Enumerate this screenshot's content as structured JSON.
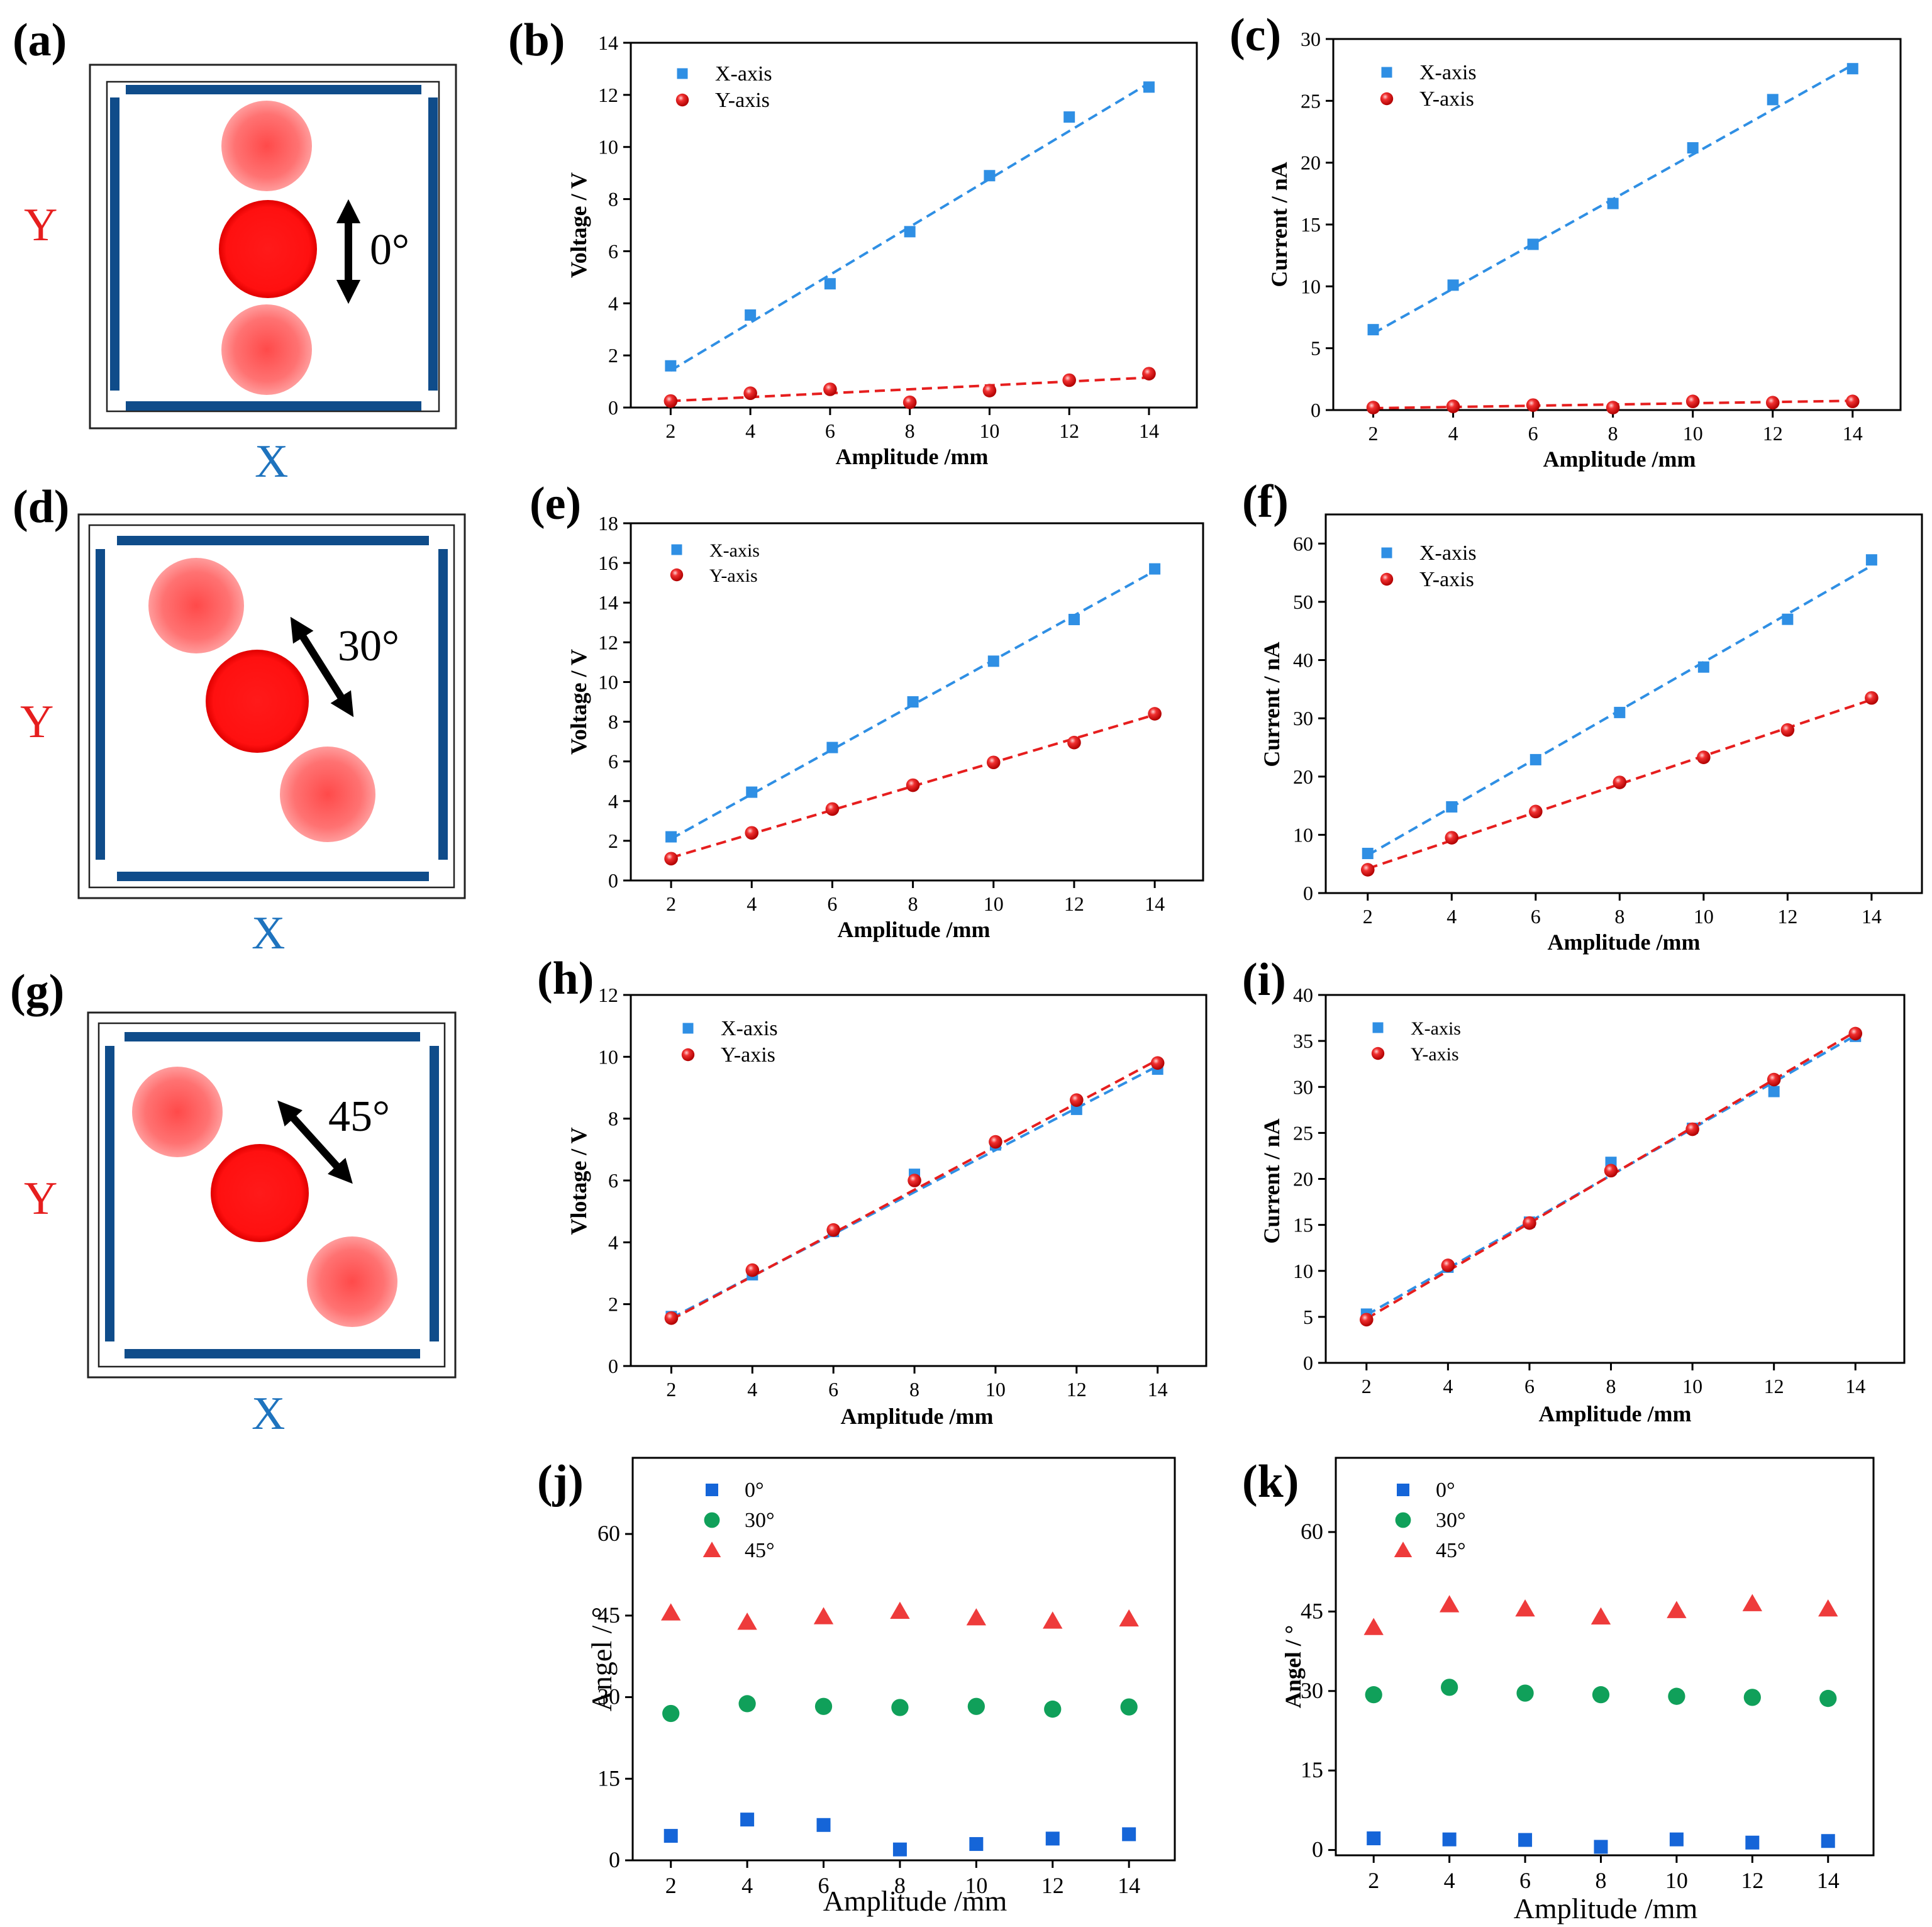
{
  "colors": {
    "x_axis_series": "#2f8fe4",
    "y_axis_series": "#e61e1e",
    "angle_0": "#1565d8",
    "angle_30": "#10a05a",
    "angle_45": "#ee3b3b",
    "frame": "#0f4c8a",
    "ball": "#ff1a1a"
  },
  "schematics": [
    {
      "panel": "(a)",
      "angle": "0°",
      "x_label": "X",
      "y_label": "Y"
    },
    {
      "panel": "(d)",
      "angle": "30°",
      "x_label": "X",
      "y_label": "Y"
    },
    {
      "panel": "(g)",
      "angle": "45°",
      "x_label": "X",
      "y_label": "Y"
    }
  ],
  "chart_data": [
    {
      "panel": "(b)",
      "type": "scatter",
      "xlabel": "Amplitude /mm",
      "ylabel": "Voltage / V",
      "xlim": [
        1,
        15.2
      ],
      "ylim": [
        0,
        14
      ],
      "xticks": [
        2,
        4,
        6,
        8,
        10,
        12,
        14
      ],
      "yticks": [
        0,
        2,
        4,
        6,
        8,
        10,
        12,
        14
      ],
      "legend": [
        "X-axis",
        "Y-axis"
      ],
      "series": [
        {
          "name": "X-axis",
          "marker": "square",
          "x": [
            2,
            4,
            6,
            8,
            10,
            12,
            14
          ],
          "values": [
            1.6,
            3.55,
            4.75,
            6.75,
            8.9,
            11.15,
            12.3
          ],
          "fit": [
            1.42,
            12.45
          ]
        },
        {
          "name": "Y-axis",
          "marker": "sphere",
          "x": [
            2,
            4,
            6,
            8,
            10,
            12,
            14
          ],
          "values": [
            0.25,
            0.55,
            0.7,
            0.2,
            0.65,
            1.05,
            1.3
          ],
          "fit": [
            0.25,
            1.15
          ]
        }
      ]
    },
    {
      "panel": "(c)",
      "type": "scatter",
      "xlabel": "Amplitude /mm",
      "ylabel": "Current  / nA",
      "xlim": [
        1,
        15.2
      ],
      "ylim": [
        0,
        30
      ],
      "xticks": [
        2,
        4,
        6,
        8,
        10,
        12,
        14
      ],
      "yticks": [
        0,
        5,
        10,
        15,
        20,
        25,
        30
      ],
      "legend": [
        "X-axis",
        "Y-axis"
      ],
      "series": [
        {
          "name": "X-axis",
          "marker": "square",
          "x": [
            2,
            4,
            6,
            8,
            10,
            12,
            14
          ],
          "values": [
            6.5,
            10.1,
            13.4,
            16.7,
            21.2,
            25.1,
            27.6
          ],
          "fit": [
            6.2,
            27.9
          ]
        },
        {
          "name": "Y-axis",
          "marker": "sphere",
          "x": [
            2,
            4,
            6,
            8,
            10,
            12,
            14
          ],
          "values": [
            0.2,
            0.3,
            0.4,
            0.2,
            0.7,
            0.6,
            0.7
          ],
          "fit": [
            0.15,
            0.75
          ]
        }
      ]
    },
    {
      "panel": "(e)",
      "type": "scatter",
      "xlabel": "Amplitude /mm",
      "ylabel": "Voltage / V",
      "xlim": [
        1,
        15.2
      ],
      "ylim": [
        0,
        18
      ],
      "xticks": [
        2,
        4,
        6,
        8,
        10,
        12,
        14
      ],
      "yticks": [
        0,
        2,
        4,
        6,
        8,
        10,
        12,
        14,
        16,
        18
      ],
      "legend": [
        "X-axis",
        "Y-axis"
      ],
      "series": [
        {
          "name": "X-axis",
          "marker": "square",
          "x": [
            2,
            4,
            6,
            8,
            10,
            12,
            14
          ],
          "values": [
            2.2,
            4.45,
            6.7,
            9.0,
            11.05,
            13.15,
            15.7
          ],
          "fit": [
            2.1,
            15.6
          ]
        },
        {
          "name": "Y-axis",
          "marker": "sphere",
          "x": [
            2,
            4,
            6,
            8,
            10,
            12,
            14
          ],
          "values": [
            1.1,
            2.4,
            3.6,
            4.8,
            5.95,
            6.95,
            8.4
          ],
          "fit": [
            1.15,
            8.35
          ]
        }
      ]
    },
    {
      "panel": "(f)",
      "type": "scatter",
      "xlabel": "Amplitude /mm",
      "ylabel": "Current / nA",
      "xlim": [
        1,
        15.2
      ],
      "ylim": [
        0,
        65
      ],
      "xticks": [
        2,
        4,
        6,
        8,
        10,
        12,
        14
      ],
      "yticks": [
        0,
        10,
        20,
        30,
        40,
        50,
        60
      ],
      "legend": [
        "X-axis",
        "Y-axis"
      ],
      "series": [
        {
          "name": "X-axis",
          "marker": "square",
          "x": [
            2,
            4,
            6,
            8,
            10,
            12,
            14
          ],
          "values": [
            6.8,
            14.8,
            22.9,
            31.0,
            38.8,
            47.0,
            57.2
          ],
          "fit": [
            6.5,
            56.2
          ]
        },
        {
          "name": "Y-axis",
          "marker": "sphere",
          "x": [
            2,
            4,
            6,
            8,
            10,
            12,
            14
          ],
          "values": [
            4.0,
            9.5,
            14.0,
            19.0,
            23.3,
            28.0,
            33.5
          ],
          "fit": [
            4.2,
            33.2
          ]
        }
      ]
    },
    {
      "panel": "(h)",
      "type": "scatter",
      "xlabel": "Amplitude /mm",
      "ylabel": "Vlotage / V",
      "xlim": [
        1,
        15.2
      ],
      "ylim": [
        0,
        12
      ],
      "xticks": [
        2,
        4,
        6,
        8,
        10,
        12,
        14
      ],
      "yticks": [
        0,
        2,
        4,
        6,
        8,
        10,
        12
      ],
      "legend": [
        "X-axis",
        "Y-axis"
      ],
      "series": [
        {
          "name": "X-axis",
          "marker": "square",
          "x": [
            2,
            4,
            6,
            8,
            10,
            12,
            14
          ],
          "values": [
            1.6,
            2.95,
            4.35,
            6.2,
            7.15,
            8.3,
            9.6
          ],
          "fit": [
            1.55,
            9.7
          ]
        },
        {
          "name": "Y-axis",
          "marker": "sphere",
          "x": [
            2,
            4,
            6,
            8,
            10,
            12,
            14
          ],
          "values": [
            1.55,
            3.1,
            4.4,
            6.0,
            7.25,
            8.6,
            9.8
          ],
          "fit": [
            1.5,
            9.9
          ]
        }
      ]
    },
    {
      "panel": "(i)",
      "type": "scatter",
      "xlabel": "Amplitude /mm",
      "ylabel": "Current / nA",
      "xlim": [
        1,
        15.2
      ],
      "ylim": [
        0,
        40
      ],
      "xticks": [
        2,
        4,
        6,
        8,
        10,
        12,
        14
      ],
      "yticks": [
        0,
        5,
        10,
        15,
        20,
        25,
        30,
        35,
        40
      ],
      "legend": [
        "X-axis",
        "Y-axis"
      ],
      "series": [
        {
          "name": "X-axis",
          "marker": "square",
          "x": [
            2,
            4,
            6,
            8,
            10,
            12,
            14
          ],
          "values": [
            5.3,
            10.4,
            15.3,
            21.8,
            25.5,
            29.5,
            35.5
          ],
          "fit": [
            5.2,
            35.6
          ]
        },
        {
          "name": "Y-axis",
          "marker": "sphere",
          "x": [
            2,
            4,
            6,
            8,
            10,
            12,
            14
          ],
          "values": [
            4.7,
            10.6,
            15.2,
            20.9,
            25.4,
            30.8,
            35.8
          ],
          "fit": [
            4.8,
            36.0
          ]
        }
      ]
    },
    {
      "panel": "(j)",
      "type": "scatter",
      "xlabel": "Amplitude /mm",
      "ylabel": "Angel / °",
      "xlim": [
        1,
        15.2
      ],
      "ylim": [
        0,
        74
      ],
      "xticks": [
        2,
        4,
        6,
        8,
        10,
        12,
        14
      ],
      "yticks": [
        0,
        15,
        30,
        45,
        60
      ],
      "legend": [
        "0°",
        "30°",
        "45°"
      ],
      "series": [
        {
          "name": "0°",
          "marker": "square",
          "x": [
            2,
            4,
            6,
            8,
            10,
            12,
            14
          ],
          "values": [
            4.5,
            7.5,
            6.5,
            2.0,
            3.0,
            4.0,
            4.8
          ]
        },
        {
          "name": "30°",
          "marker": "circle",
          "x": [
            2,
            4,
            6,
            8,
            10,
            12,
            14
          ],
          "values": [
            27.0,
            28.8,
            28.3,
            28.1,
            28.3,
            27.8,
            28.2
          ]
        },
        {
          "name": "45°",
          "marker": "triangle",
          "x": [
            2,
            4,
            6,
            8,
            10,
            12,
            14
          ],
          "values": [
            45.5,
            43.8,
            44.8,
            45.8,
            44.6,
            44.0,
            44.4
          ]
        }
      ]
    },
    {
      "panel": "(k)",
      "type": "scatter",
      "xlabel": "Amplitude /mm",
      "ylabel": "Angel / °",
      "xlim": [
        1,
        15.2
      ],
      "ylim": [
        -1,
        74
      ],
      "xticks": [
        2,
        4,
        6,
        8,
        10,
        12,
        14
      ],
      "yticks": [
        0,
        15,
        30,
        45,
        60
      ],
      "legend": [
        "0°",
        "30°",
        "45°"
      ],
      "series": [
        {
          "name": "0°",
          "marker": "square",
          "x": [
            2,
            4,
            6,
            8,
            10,
            12,
            14
          ],
          "values": [
            2.2,
            2.0,
            1.9,
            0.6,
            2.0,
            1.4,
            1.7
          ]
        },
        {
          "name": "30°",
          "marker": "circle",
          "x": [
            2,
            4,
            6,
            8,
            10,
            12,
            14
          ],
          "values": [
            29.3,
            30.7,
            29.6,
            29.3,
            29.0,
            28.8,
            28.6
          ]
        },
        {
          "name": "45°",
          "marker": "triangle",
          "x": [
            2,
            4,
            6,
            8,
            10,
            12,
            14
          ],
          "values": [
            42.0,
            46.3,
            45.5,
            44.0,
            45.2,
            46.5,
            45.5
          ]
        }
      ]
    }
  ]
}
